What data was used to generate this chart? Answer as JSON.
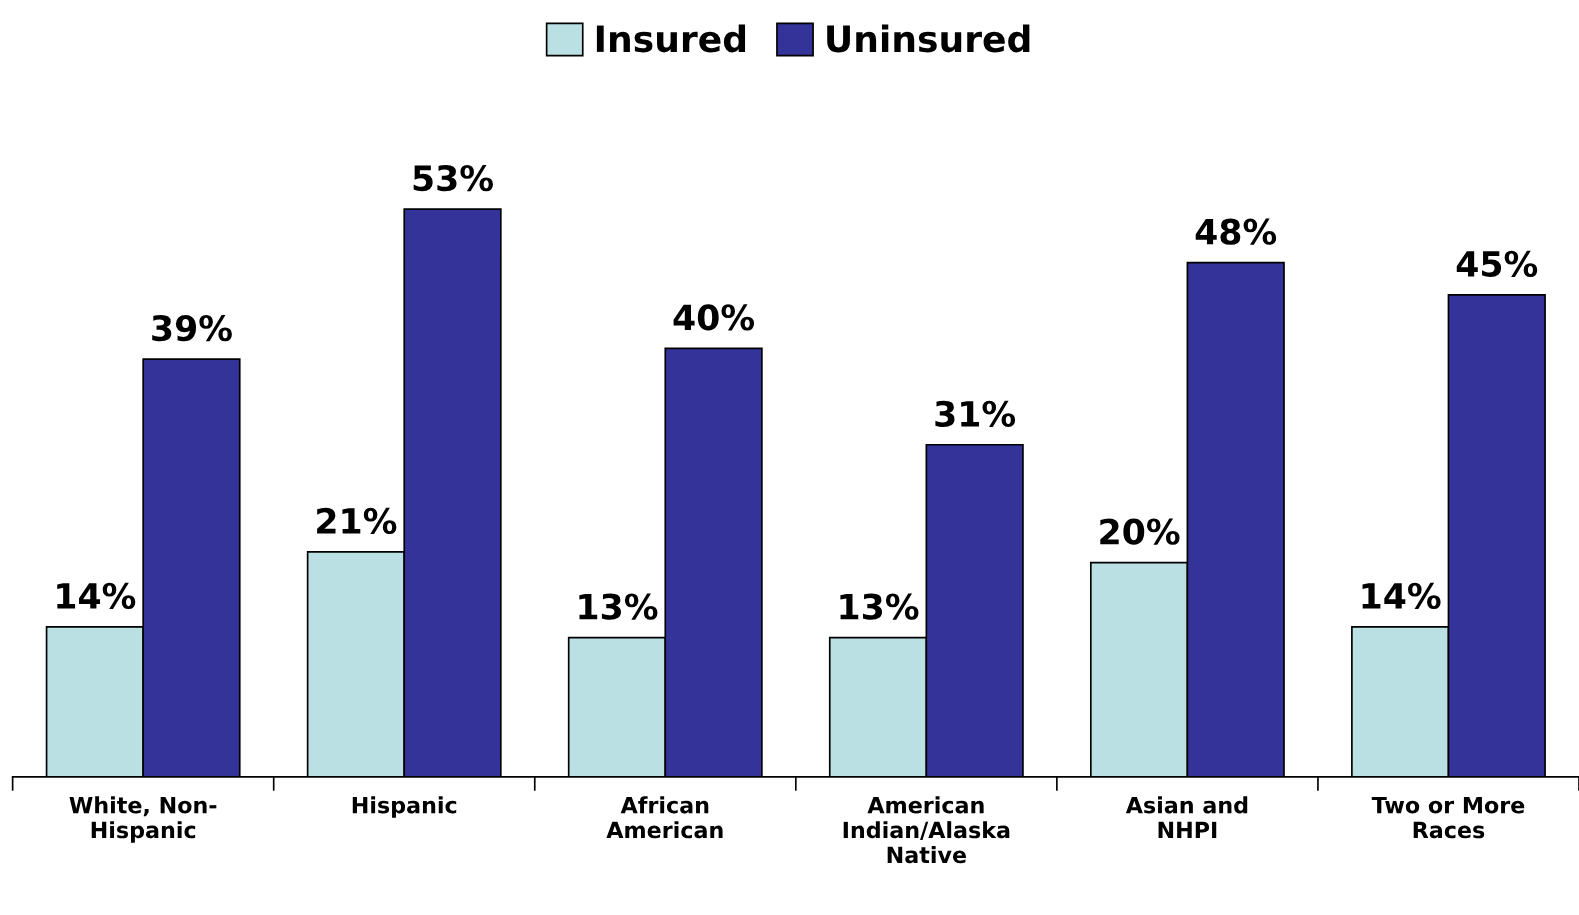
{
  "chart_data": {
    "type": "bar",
    "categories": [
      "White, Non-\nHispanic",
      "Hispanic",
      "African\nAmerican",
      "American\nIndian/Alaska\nNative",
      "Asian and\nNHPI",
      "Two or More\nRaces"
    ],
    "series": [
      {
        "name": "Insured",
        "color": "#bae0e3",
        "values": [
          14,
          21,
          13,
          13,
          20,
          14
        ],
        "value_labels": [
          "14%",
          "21%",
          "13%",
          "13%",
          "20%",
          "14%"
        ]
      },
      {
        "name": "Uninsured",
        "color": "#333399",
        "values": [
          39,
          53,
          40,
          31,
          48,
          45
        ],
        "value_labels": [
          "39%",
          "53%",
          "40%",
          "31%",
          "48%",
          "45%"
        ]
      }
    ],
    "legend": "top",
    "grid": false
  }
}
